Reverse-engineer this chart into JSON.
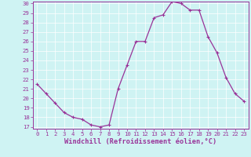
{
  "x": [
    0,
    1,
    2,
    3,
    4,
    5,
    6,
    7,
    8,
    9,
    10,
    11,
    12,
    13,
    14,
    15,
    16,
    17,
    18,
    19,
    20,
    21,
    22,
    23
  ],
  "y": [
    21.5,
    20.5,
    19.5,
    18.5,
    18.0,
    17.8,
    17.2,
    17.0,
    17.2,
    21.0,
    23.5,
    26.0,
    26.0,
    28.5,
    28.8,
    30.2,
    30.0,
    29.3,
    29.3,
    26.5,
    24.8,
    22.2,
    20.5,
    19.7
  ],
  "line_color": "#993399",
  "marker": "+",
  "marker_size": 3,
  "marker_linewidth": 0.8,
  "bg_color": "#cff3f3",
  "grid_color": "#ffffff",
  "xlabel": "Windchill (Refroidissement éolien,°C)",
  "ylim": [
    17,
    30
  ],
  "xlim": [
    -0.5,
    23.5
  ],
  "yticks": [
    17,
    18,
    19,
    20,
    21,
    22,
    23,
    24,
    25,
    26,
    27,
    28,
    29,
    30
  ],
  "xticks": [
    0,
    1,
    2,
    3,
    4,
    5,
    6,
    7,
    8,
    9,
    10,
    11,
    12,
    13,
    14,
    15,
    16,
    17,
    18,
    19,
    20,
    21,
    22,
    23
  ],
  "tick_color": "#993399",
  "label_color": "#993399",
  "spine_color": "#993399",
  "font_size_ticks": 5.2,
  "font_size_xlabel": 6.2,
  "line_width": 0.9
}
